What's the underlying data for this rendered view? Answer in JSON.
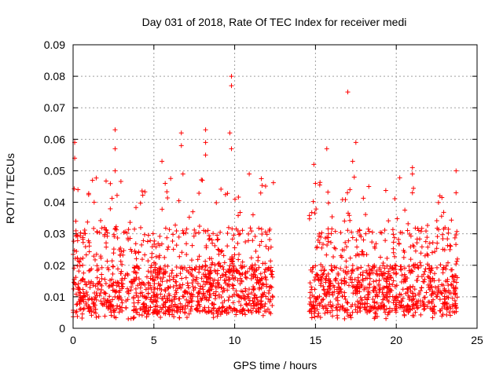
{
  "chart_data": {
    "type": "scatter",
    "title": "Day 031 of 2018, Rate Of TEC Index for receiver medi",
    "xlabel": "GPS time / hours",
    "ylabel": "ROTI / TECUs",
    "xlim": [
      0,
      25
    ],
    "ylim": [
      0,
      0.09
    ],
    "xticks": [
      0,
      5,
      10,
      15,
      20,
      25
    ],
    "xtick_labels": [
      "0",
      "5",
      "10",
      "15",
      "20",
      "25"
    ],
    "yticks": [
      0,
      0.01,
      0.02,
      0.03,
      0.04,
      0.05,
      0.06,
      0.07,
      0.08,
      0.09
    ],
    "ytick_labels": [
      "0",
      "0.01",
      "0.02",
      "0.03",
      "0.04",
      "0.05",
      "0.06",
      "0.07",
      "0.08",
      "0.09"
    ],
    "grid": true,
    "marker": "+",
    "series_color": "#ff0000",
    "data_segments": [
      {
        "x_start": 0.0,
        "x_end": 12.4,
        "typical_range": [
          0.005,
          0.02
        ]
      },
      {
        "x_start": 14.6,
        "x_end": 23.8,
        "typical_range": [
          0.005,
          0.02
        ]
      }
    ],
    "notable_points": [
      {
        "x": 0.1,
        "y": 0.059
      },
      {
        "x": 0.1,
        "y": 0.054
      },
      {
        "x": 0.3,
        "y": 0.044
      },
      {
        "x": 1.2,
        "y": 0.047
      },
      {
        "x": 2.6,
        "y": 0.063
      },
      {
        "x": 2.6,
        "y": 0.057
      },
      {
        "x": 2.6,
        "y": 0.05
      },
      {
        "x": 5.5,
        "y": 0.053
      },
      {
        "x": 5.7,
        "y": 0.046
      },
      {
        "x": 6.7,
        "y": 0.062
      },
      {
        "x": 6.7,
        "y": 0.058
      },
      {
        "x": 6.8,
        "y": 0.049
      },
      {
        "x": 8.2,
        "y": 0.063
      },
      {
        "x": 8.2,
        "y": 0.059
      },
      {
        "x": 8.2,
        "y": 0.055
      },
      {
        "x": 8.0,
        "y": 0.047
      },
      {
        "x": 9.8,
        "y": 0.08
      },
      {
        "x": 9.8,
        "y": 0.077
      },
      {
        "x": 9.7,
        "y": 0.062
      },
      {
        "x": 9.8,
        "y": 0.057
      },
      {
        "x": 10.9,
        "y": 0.049
      },
      {
        "x": 14.9,
        "y": 0.052
      },
      {
        "x": 15.0,
        "y": 0.046
      },
      {
        "x": 15.7,
        "y": 0.057
      },
      {
        "x": 17.0,
        "y": 0.075
      },
      {
        "x": 17.5,
        "y": 0.059
      },
      {
        "x": 17.3,
        "y": 0.053
      },
      {
        "x": 17.4,
        "y": 0.048
      },
      {
        "x": 18.3,
        "y": 0.045
      },
      {
        "x": 21.0,
        "y": 0.051
      },
      {
        "x": 21.0,
        "y": 0.049
      },
      {
        "x": 21.0,
        "y": 0.043
      },
      {
        "x": 22.7,
        "y": 0.042
      },
      {
        "x": 23.7,
        "y": 0.05
      },
      {
        "x": 23.7,
        "y": 0.043
      }
    ]
  }
}
